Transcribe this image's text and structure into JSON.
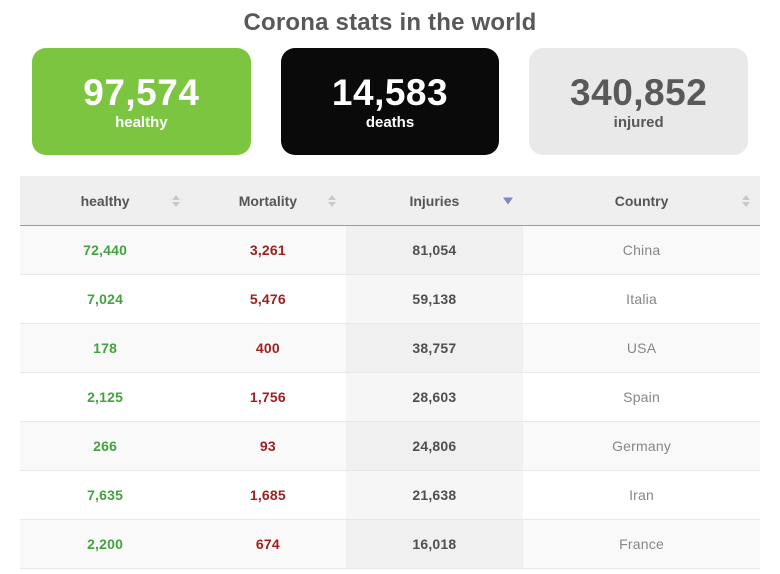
{
  "title": "Corona stats in the world",
  "colors": {
    "green_card": "#7bc540",
    "black_card": "#0a0a0a",
    "gray_card": "#e9e9e9",
    "healthy_text": "#42a33f",
    "mortality_text": "#9e2121",
    "sort_active": "#7b87c6"
  },
  "cards": [
    {
      "value": "97,574",
      "label": "healthy"
    },
    {
      "value": "14,583",
      "label": "deaths"
    },
    {
      "value": "340,852",
      "label": "injured"
    }
  ],
  "table": {
    "columns": [
      {
        "label": "healthy",
        "sort": "none"
      },
      {
        "label": "Mortality",
        "sort": "none"
      },
      {
        "label": "Injuries",
        "sort": "desc"
      },
      {
        "label": "Country",
        "sort": "none"
      }
    ],
    "rows": [
      {
        "healthy": "72,440",
        "mortality": "3,261",
        "injuries": "81,054",
        "country": "China"
      },
      {
        "healthy": "7,024",
        "mortality": "5,476",
        "injuries": "59,138",
        "country": "Italia"
      },
      {
        "healthy": "178",
        "mortality": "400",
        "injuries": "38,757",
        "country": "USA"
      },
      {
        "healthy": "2,125",
        "mortality": "1,756",
        "injuries": "28,603",
        "country": "Spain"
      },
      {
        "healthy": "266",
        "mortality": "93",
        "injuries": "24,806",
        "country": "Germany"
      },
      {
        "healthy": "7,635",
        "mortality": "1,685",
        "injuries": "21,638",
        "country": "Iran"
      },
      {
        "healthy": "2,200",
        "mortality": "674",
        "injuries": "16,018",
        "country": "France"
      }
    ]
  }
}
